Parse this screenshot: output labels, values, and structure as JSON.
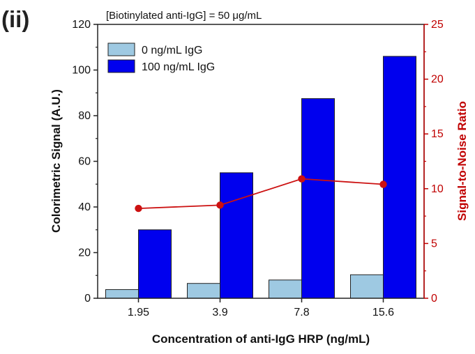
{
  "panel_label": "(ii)",
  "colors": {
    "series_0": "#9ec9e2",
    "series_100": "#0000ee",
    "snr": "#cc1111",
    "right_axis": "#c00000"
  },
  "chart_data": {
    "type": "bar",
    "subtitle_prefix": "[Biotinylated anti-IgG] = 50 ",
    "subtitle_unit": "μg/mL",
    "xlabel": "Concentration of anti-IgG HRP (ng/mL)",
    "ylabel": "Colorimetric Signal (A.U.)",
    "y2label": "Signal-to-Noise Ratio",
    "categories": [
      "1.95",
      "3.9",
      "7.8",
      "15.6"
    ],
    "ylim": [
      0,
      120
    ],
    "y_ticks": [
      "0",
      "20",
      "40",
      "60",
      "80",
      "100",
      "120"
    ],
    "y2lim": [
      0,
      25
    ],
    "y2_ticks": [
      "0",
      "5",
      "10",
      "15",
      "20",
      "25"
    ],
    "legend_position": "top-left",
    "series": [
      {
        "name": "0 ng/mL IgG",
        "type": "bar",
        "axis": "left",
        "values": [
          3.8,
          6.5,
          8.0,
          10.3
        ]
      },
      {
        "name": "100 ng/mL IgG",
        "type": "bar",
        "axis": "left",
        "values": [
          30.0,
          55.0,
          87.5,
          106.0
        ]
      },
      {
        "type": "line",
        "axis": "right",
        "values": [
          8.2,
          8.5,
          10.9,
          10.4
        ]
      }
    ]
  }
}
